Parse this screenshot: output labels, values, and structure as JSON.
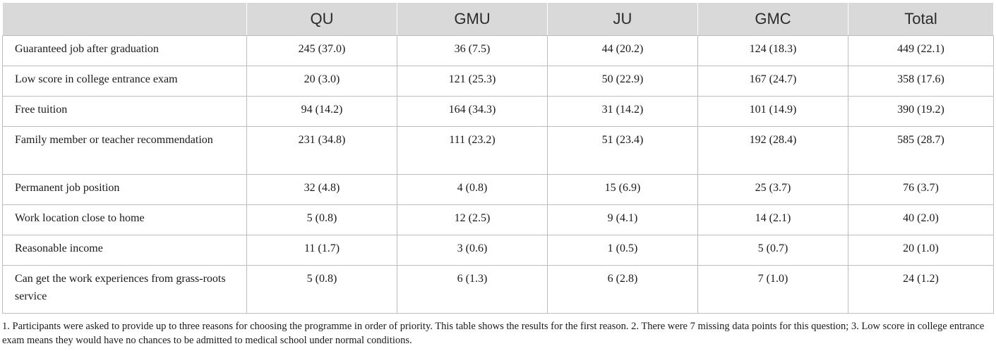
{
  "table": {
    "columns": [
      "",
      "QU",
      "GMU",
      "JU",
      "GMC",
      "Total"
    ],
    "rows": [
      {
        "label": "Guaranteed job after graduation",
        "values": [
          "245 (37.0)",
          "36 (7.5)",
          "44 (20.2)",
          "124 (18.3)",
          "449 (22.1)"
        ]
      },
      {
        "label": "Low score in college entrance exam",
        "values": [
          "20 (3.0)",
          "121 (25.3)",
          "50 (22.9)",
          "167 (24.7)",
          "358 (17.6)"
        ]
      },
      {
        "label": "Free tuition",
        "values": [
          "94 (14.2)",
          "164 (34.3)",
          "31 (14.2)",
          "101 (14.9)",
          "390 (19.2)"
        ]
      },
      {
        "label": "Family member or teacher recommendation",
        "values": [
          "231 (34.8)",
          "111 (23.2)",
          "51 (23.4)",
          "192 (28.4)",
          "585 (28.7)"
        ]
      },
      {
        "label": "Permanent job position",
        "values": [
          "32 (4.8)",
          "4 (0.8)",
          "15 (6.9)",
          "25 (3.7)",
          "76 (3.7)"
        ]
      },
      {
        "label": "Work location close to home",
        "values": [
          "5 (0.8)",
          "12 (2.5)",
          "9 (4.1)",
          "14 (2.1)",
          "40 (2.0)"
        ]
      },
      {
        "label": "Reasonable income",
        "values": [
          "11 (1.7)",
          "3 (0.6)",
          "1 (0.5)",
          "5 (0.7)",
          "20 (1.0)"
        ]
      },
      {
        "label": "Can get the work experiences from grass-roots service",
        "values": [
          "5 (0.8)",
          "6 (1.3)",
          "6 (2.8)",
          "7 (1.0)",
          "24 (1.2)"
        ]
      }
    ]
  },
  "footnote": "1. Participants were asked to provide up to three reasons for choosing the programme in order of priority. This table shows the results for the first reason. 2. There were 7 missing data points for this question; 3. Low score in college entrance exam means they would have no chances to be admitted to medical school under normal conditions."
}
